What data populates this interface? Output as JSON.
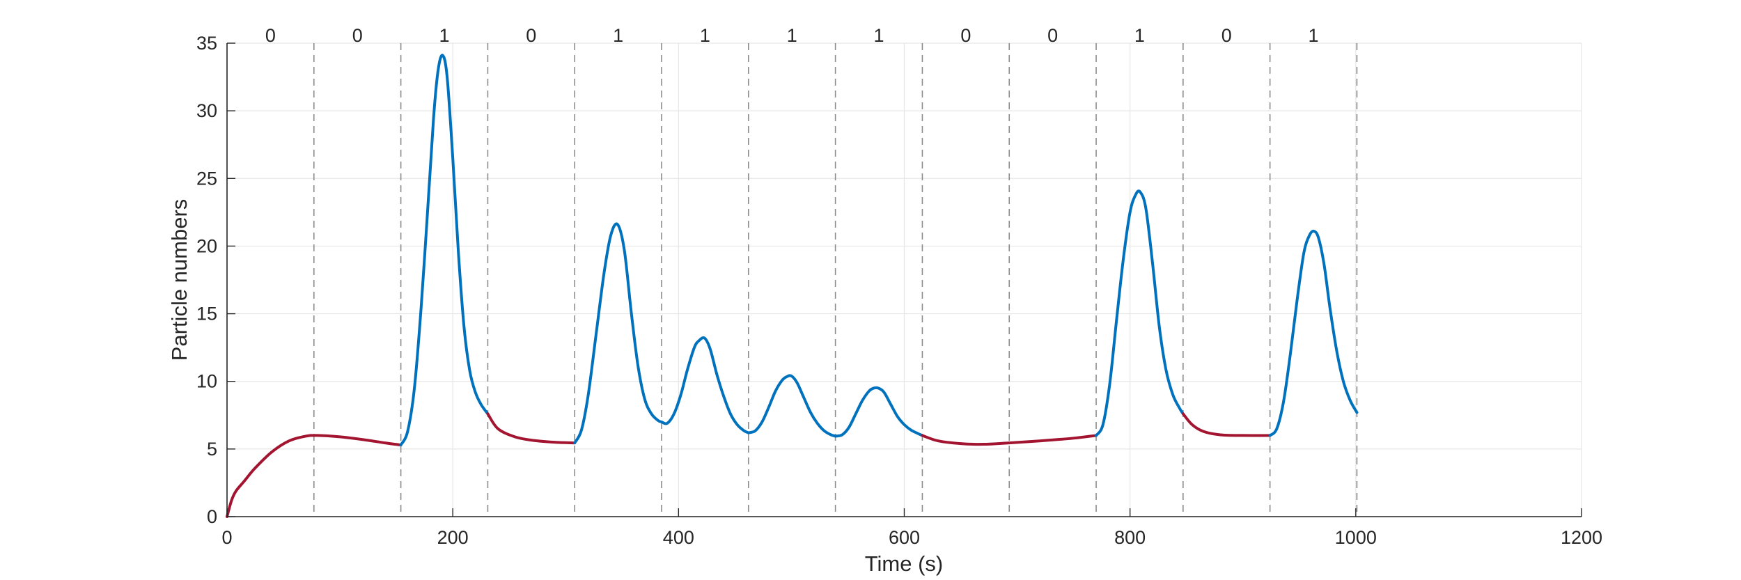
{
  "chart_data": {
    "type": "line",
    "xlabel": "Time (s)",
    "ylabel": "Particle numbers",
    "xlim": [
      0,
      1200
    ],
    "ylim": [
      0,
      35
    ],
    "xticks": [
      "0",
      "200",
      "400",
      "600",
      "800",
      "1000",
      "1200"
    ],
    "yticks": [
      "0",
      "5",
      "10",
      "15",
      "20",
      "25",
      "30",
      "35"
    ],
    "grid": true,
    "colors": {
      "state_0": "#A2142F",
      "state_1": "#0072BD",
      "grid": "#e6e6e6",
      "boundary": "#8c8c8c",
      "axis": "#262626"
    },
    "boundaries": [
      0,
      77,
      154,
      231,
      308,
      385,
      462,
      539,
      616,
      693,
      770,
      847,
      924,
      1001
    ],
    "segment_labels": [
      "0",
      "0",
      "1",
      "0",
      "1",
      "1",
      "1",
      "1",
      "0",
      "0",
      "1",
      "0",
      "1"
    ],
    "peaks": [
      {
        "x": 191,
        "y": 34.1
      },
      {
        "x": 346,
        "y": 21.6
      },
      {
        "x": 423,
        "y": 13.2
      },
      {
        "x": 500,
        "y": 10.4
      },
      {
        "x": 577,
        "y": 9.5
      },
      {
        "x": 809,
        "y": 24.0
      },
      {
        "x": 963,
        "y": 21.1
      }
    ],
    "series": [
      {
        "state": "0",
        "x": [
          0,
          4,
          8,
          15,
          25,
          40,
          55,
          70,
          80,
          100,
          120,
          140,
          154
        ],
        "y": [
          0,
          1.2,
          1.9,
          2.6,
          3.6,
          4.8,
          5.6,
          5.95,
          6.0,
          5.9,
          5.7,
          5.45,
          5.3
        ]
      },
      {
        "state": "1",
        "x": [
          154,
          160,
          166,
          172,
          178,
          183,
          187,
          191,
          195,
          200,
          205,
          210,
          215,
          220,
          225,
          231
        ],
        "y": [
          5.3,
          6.3,
          9.5,
          15.5,
          23.0,
          29.5,
          33.0,
          34.1,
          32.5,
          26.5,
          19.5,
          14.0,
          10.8,
          9.2,
          8.3,
          7.6
        ]
      },
      {
        "state": "0",
        "x": [
          231,
          240,
          255,
          270,
          290,
          308
        ],
        "y": [
          7.6,
          6.5,
          5.9,
          5.65,
          5.5,
          5.45
        ]
      },
      {
        "state": "1",
        "x": [
          308,
          314,
          320,
          327,
          334,
          340,
          346,
          352,
          358,
          364,
          370,
          376,
          382,
          385
        ],
        "y": [
          5.45,
          6.4,
          9.0,
          13.5,
          18.0,
          20.8,
          21.6,
          19.7,
          15.2,
          11.2,
          8.7,
          7.6,
          7.1,
          7.0
        ]
      },
      {
        "state": "1",
        "x": [
          385,
          390,
          396,
          402,
          408,
          414,
          418,
          423,
          428,
          434,
          440,
          446,
          452,
          458,
          462
        ],
        "y": [
          7.0,
          6.9,
          7.6,
          9.0,
          10.9,
          12.5,
          13.0,
          13.2,
          12.4,
          10.5,
          8.9,
          7.6,
          6.8,
          6.35,
          6.2
        ]
      },
      {
        "state": "1",
        "x": [
          462,
          468,
          474,
          480,
          486,
          492,
          496,
          500,
          505,
          511,
          517,
          523,
          529,
          535,
          539
        ],
        "y": [
          6.2,
          6.35,
          7.0,
          8.1,
          9.3,
          10.1,
          10.35,
          10.4,
          9.9,
          8.8,
          7.7,
          6.9,
          6.35,
          6.05,
          5.95
        ]
      },
      {
        "state": "1",
        "x": [
          539,
          545,
          551,
          557,
          563,
          569,
          573,
          577,
          582,
          588,
          594,
          600,
          606,
          612,
          616
        ],
        "y": [
          5.95,
          6.05,
          6.6,
          7.6,
          8.6,
          9.3,
          9.5,
          9.5,
          9.2,
          8.3,
          7.4,
          6.8,
          6.4,
          6.15,
          6.0
        ]
      },
      {
        "state": "0",
        "x": [
          616,
          630,
          650,
          670,
          693,
          720,
          750,
          770
        ],
        "y": [
          6.0,
          5.6,
          5.4,
          5.35,
          5.45,
          5.6,
          5.8,
          6.0
        ]
      },
      {
        "state": "1",
        "x": [
          770,
          776,
          782,
          788,
          794,
          800,
          805,
          809,
          814,
          820,
          826,
          832,
          838,
          844,
          847
        ],
        "y": [
          6.0,
          6.8,
          9.8,
          14.5,
          19.0,
          22.5,
          23.8,
          24.0,
          22.8,
          18.7,
          14.0,
          10.8,
          9.0,
          8.0,
          7.6
        ]
      },
      {
        "state": "0",
        "x": [
          847,
          855,
          865,
          880,
          900,
          924
        ],
        "y": [
          7.6,
          6.8,
          6.3,
          6.05,
          6.0,
          6.0
        ]
      },
      {
        "state": "1",
        "x": [
          924,
          930,
          936,
          942,
          948,
          954,
          959,
          963,
          967,
          972,
          977,
          983,
          989,
          995,
          1001
        ],
        "y": [
          6.0,
          6.5,
          8.5,
          12.0,
          16.0,
          19.5,
          20.8,
          21.1,
          20.6,
          18.6,
          15.5,
          12.3,
          10.0,
          8.6,
          7.7
        ]
      }
    ]
  }
}
